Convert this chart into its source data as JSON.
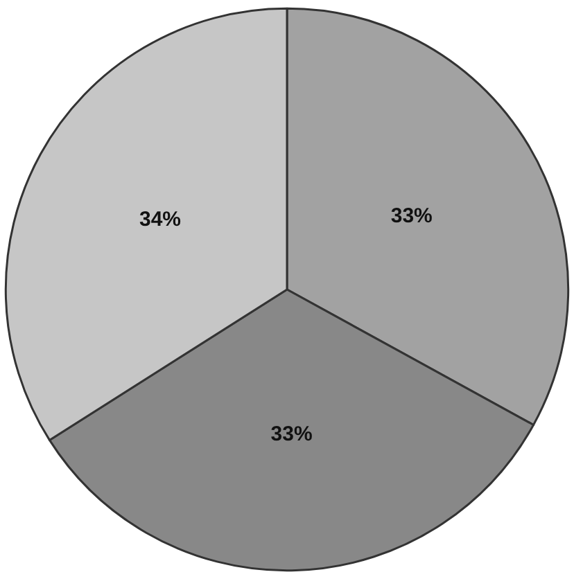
{
  "chart_data": {
    "type": "pie",
    "categories": [
      null,
      null,
      null
    ],
    "values": [
      33,
      33,
      34
    ],
    "colors": [
      "#a2a2a2",
      "#888888",
      "#c6c6c6"
    ],
    "value_labels": [
      "33%",
      "33%",
      "34%"
    ]
  }
}
